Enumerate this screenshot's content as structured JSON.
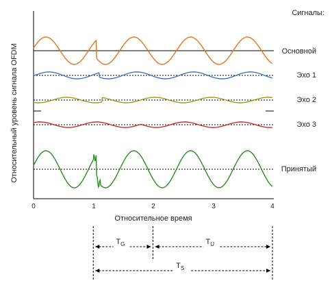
{
  "chart_data": {
    "type": "line",
    "x_axis": {
      "label": "Относительное время",
      "ticks": [
        "0",
        "1",
        "2",
        "3",
        "4"
      ],
      "xlim": [
        0,
        4
      ]
    },
    "y_axis": {
      "label": "Относительный уровень сигнала OFDM"
    },
    "legend_title": "Сигналы:",
    "series": [
      {
        "name": "Основной",
        "color": "#e2741f",
        "amplitude": 1.0,
        "delay": 0.0,
        "symbol_change_at": 1.05
      },
      {
        "name": "Эхо 1",
        "color": "#3c74c4",
        "amplitude": 0.22,
        "delay": 0.05,
        "symbol_change_at": 1.1
      },
      {
        "name": "Эхо 2",
        "color": "#9a9a1a",
        "amplitude": 0.18,
        "delay": 0.35,
        "symbol_change_at": 1.15
      },
      {
        "name": "Эхо 3",
        "color": "#cc2a2a",
        "amplitude": 0.18,
        "delay": 0.85,
        "symbol_change_at": 1.8
      },
      {
        "name": "Принятый",
        "color": "#2d8a22",
        "amplitude": 1.35,
        "delay": 0.0,
        "symbol_change_at": 1.05
      }
    ],
    "intervals": [
      {
        "label": "T",
        "sub": "G",
        "from": 1.0,
        "to": 2.0
      },
      {
        "label": "T",
        "sub": "U",
        "from": 2.0,
        "to": 4.0
      },
      {
        "label": "T",
        "sub": "S",
        "from": 1.0,
        "to": 4.0
      }
    ]
  }
}
